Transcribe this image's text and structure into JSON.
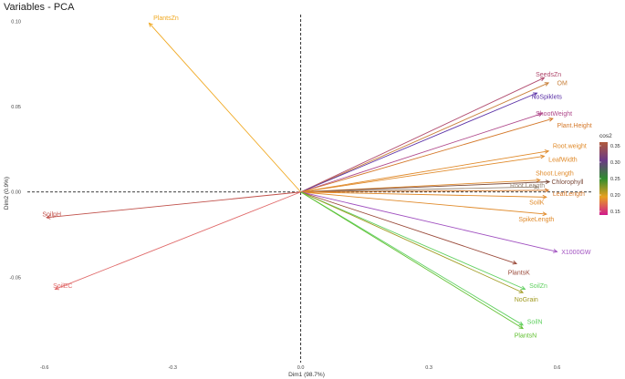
{
  "chart_data": {
    "type": "scatter",
    "subtype": "pca-variables-arrows",
    "title": "Variables - PCA",
    "xlabel": "Dim1 (98.7%)",
    "ylabel": "Dim2 (0.9%)",
    "xlim": [
      -0.64,
      0.68
    ],
    "ylim": [
      -0.1,
      0.104
    ],
    "x_ticks": [
      -0.6,
      -0.3,
      0.0,
      0.3,
      0.6
    ],
    "x_tick_labels": [
      "-0.6",
      "-0.3",
      "0.0",
      "0.3",
      "0.6"
    ],
    "y_ticks": [
      -0.05,
      0.0,
      0.05,
      0.1
    ],
    "y_tick_labels": [
      "-0.05",
      "0.00",
      "0.05",
      "0.10"
    ],
    "grid": false,
    "reference_lines": {
      "x": 0,
      "y": 0,
      "style": "dashed"
    },
    "legend": {
      "title": "cos2",
      "placement": "right",
      "ticks": [
        0.35,
        0.3,
        0.25,
        0.2,
        0.15
      ],
      "tick_labels": [
        "0.35",
        "0.30",
        "0.25",
        "0.20",
        "0.15"
      ],
      "colors": [
        "#b05a3c",
        "#6a3a86",
        "#2e8b2e",
        "#e8a020",
        "#d01a8c"
      ]
    },
    "variables": [
      {
        "name": "PlantsZn",
        "x": -0.355,
        "y": 0.099,
        "color": "#f0a820",
        "lx": -0.345,
        "ly": 0.102
      },
      {
        "name": "SeedsZn",
        "x": 0.57,
        "y": 0.067,
        "color": "#b04a6e",
        "lx": 0.55,
        "ly": 0.069
      },
      {
        "name": "OM",
        "x": 0.58,
        "y": 0.064,
        "color": "#c8803a",
        "lx": 0.6,
        "ly": 0.064
      },
      {
        "name": "NoSpiklets",
        "x": 0.553,
        "y": 0.058,
        "color": "#5a30a6",
        "lx": 0.54,
        "ly": 0.056
      },
      {
        "name": "ShootWeight",
        "x": 0.565,
        "y": 0.046,
        "color": "#b04a8c",
        "lx": 0.55,
        "ly": 0.046
      },
      {
        "name": "Plant.Height",
        "x": 0.59,
        "y": 0.043,
        "color": "#d4782a",
        "lx": 0.6,
        "ly": 0.039
      },
      {
        "name": "Root.weight",
        "x": 0.58,
        "y": 0.024,
        "color": "#e08a2a",
        "lx": 0.59,
        "ly": 0.027
      },
      {
        "name": "LeafWidth",
        "x": 0.57,
        "y": 0.021,
        "color": "#e08a2a",
        "lx": 0.58,
        "ly": 0.019
      },
      {
        "name": "Shoot.Length",
        "x": 0.56,
        "y": 0.007,
        "color": "#e08a2a",
        "lx": 0.55,
        "ly": 0.011
      },
      {
        "name": "Chlorophyll",
        "x": 0.582,
        "y": 0.006,
        "color": "#7a4a3a",
        "lx": 0.587,
        "ly": 0.006
      },
      {
        "name": "Root.Length",
        "x": 0.555,
        "y": 0.003,
        "color": "#9a8a7a",
        "lx": 0.49,
        "ly": 0.004
      },
      {
        "name": "LeafLength",
        "x": 0.58,
        "y": 0.001,
        "color": "#d4782a",
        "lx": 0.59,
        "ly": -0.001
      },
      {
        "name": "SoilK",
        "x": 0.575,
        "y": -0.003,
        "color": "#e08a2a",
        "lx": 0.535,
        "ly": -0.006
      },
      {
        "name": "SpikeLength",
        "x": 0.575,
        "y": -0.013,
        "color": "#e08a2a",
        "lx": 0.51,
        "ly": -0.016
      },
      {
        "name": "X1000GW",
        "x": 0.6,
        "y": -0.035,
        "color": "#a050c0",
        "lx": 0.61,
        "ly": -0.035
      },
      {
        "name": "PlantsK",
        "x": 0.505,
        "y": -0.042,
        "color": "#9a4a3a",
        "lx": 0.485,
        "ly": -0.047
      },
      {
        "name": "SoilZn",
        "x": 0.525,
        "y": -0.057,
        "color": "#60d060",
        "lx": 0.535,
        "ly": -0.055
      },
      {
        "name": "NoGrain",
        "x": 0.52,
        "y": -0.059,
        "color": "#a09a20",
        "lx": 0.5,
        "ly": -0.063
      },
      {
        "name": "SoilN",
        "x": 0.52,
        "y": -0.078,
        "color": "#60d060",
        "lx": 0.53,
        "ly": -0.076
      },
      {
        "name": "PlantsN",
        "x": 0.52,
        "y": -0.08,
        "color": "#60c030",
        "lx": 0.5,
        "ly": -0.084
      },
      {
        "name": "SoilpH",
        "x": -0.595,
        "y": -0.015,
        "color": "#c0504a",
        "lx": -0.605,
        "ly": -0.013
      },
      {
        "name": "SoilEC",
        "x": -0.575,
        "y": -0.057,
        "color": "#e06a6a",
        "lx": -0.58,
        "ly": -0.055
      }
    ]
  }
}
